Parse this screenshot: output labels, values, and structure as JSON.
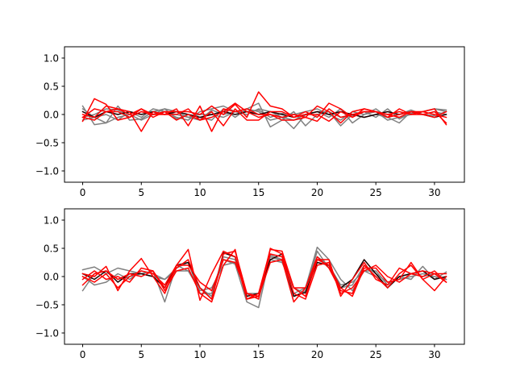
{
  "chart_data": [
    {
      "type": "line",
      "xlim": [
        -1.55,
        32.55
      ],
      "ylim": [
        -1.2,
        1.2
      ],
      "xticks": [
        0,
        5,
        10,
        15,
        20,
        25,
        30
      ],
      "xtick_labels": [
        "0",
        "5",
        "10",
        "15",
        "20",
        "25",
        "30"
      ],
      "yticks": [
        1.0,
        0.5,
        0.0,
        -0.5,
        -1.0
      ],
      "ytick_labels": [
        "1.0",
        "0.5",
        "0.0",
        "−0.5",
        "−1.0"
      ],
      "grid": false,
      "x": [
        0,
        1,
        2,
        3,
        4,
        5,
        6,
        7,
        8,
        9,
        10,
        11,
        12,
        13,
        14,
        15,
        16,
        17,
        18,
        19,
        20,
        21,
        22,
        23,
        24,
        25,
        26,
        27,
        28,
        29,
        30,
        31
      ],
      "series": [
        {
          "color": "#808080",
          "values": [
            0.15,
            -0.18,
            -0.15,
            0.15,
            -0.1,
            -0.08,
            0.05,
            0.1,
            -0.08,
            0.0,
            -0.05,
            -0.1,
            0.1,
            -0.05,
            0.1,
            0.2,
            -0.22,
            -0.1,
            0.05,
            -0.2,
            0.0,
            0.05,
            -0.05,
            -0.02,
            0.05,
            -0.05,
            0.1,
            -0.08,
            0.02,
            0.05,
            0.1,
            0.05
          ]
        },
        {
          "color": "#808080",
          "values": [
            -0.05,
            0.0,
            0.1,
            0.08,
            -0.05,
            0.05,
            0.0,
            0.1,
            0.05,
            -0.05,
            -0.1,
            0.08,
            0.0,
            0.05,
            0.05,
            0.08,
            -0.05,
            0.02,
            0.0,
            0.05,
            0.1,
            0.0,
            -0.1,
            0.05,
            0.0,
            0.1,
            -0.05,
            0.0,
            0.08,
            0.0,
            0.05,
            0.0
          ]
        },
        {
          "color": "#808080",
          "values": [
            0.1,
            -0.05,
            0.0,
            -0.1,
            0.05,
            -0.05,
            0.1,
            0.05,
            -0.05,
            -0.1,
            0.05,
            0.1,
            0.15,
            0.05,
            0.1,
            0.05,
            -0.1,
            -0.05,
            -0.25,
            0.0,
            0.05,
            -0.05,
            0.1,
            -0.15,
            0.0,
            0.05,
            -0.1,
            -0.05,
            0.0,
            0.05,
            0.1,
            0.08
          ]
        },
        {
          "color": "#808080",
          "values": [
            -0.1,
            -0.05,
            -0.15,
            -0.05,
            0.0,
            -0.1,
            0.0,
            0.05,
            0.0,
            -0.05,
            0.0,
            0.0,
            -0.05,
            0.05,
            0.0,
            0.1,
            0.05,
            -0.05,
            -0.1,
            0.0,
            0.05,
            0.05,
            -0.2,
            0.0,
            -0.05,
            0.0,
            -0.05,
            -0.15,
            0.05,
            0.0,
            -0.02,
            0.05
          ]
        },
        {
          "color": "#1a0000",
          "values": [
            0.05,
            -0.05,
            0.05,
            0.0,
            0.05,
            0.0,
            0.05,
            0.0,
            0.05,
            0.0,
            -0.05,
            0.0,
            0.05,
            0.0,
            0.05,
            0.0,
            0.05,
            0.0,
            -0.05,
            0.0,
            0.05,
            0.0,
            0.05,
            0.0,
            -0.05,
            0.0,
            0.05,
            0.0,
            0.05,
            0.0,
            -0.05,
            0.0
          ]
        },
        {
          "color": "#ff0000",
          "values": [
            -0.12,
            0.28,
            0.18,
            -0.1,
            -0.05,
            0.1,
            -0.05,
            0.05,
            0.05,
            0.05,
            0.0,
            0.15,
            0.0,
            0.18,
            -0.05,
            0.4,
            0.15,
            0.1,
            -0.05,
            0.05,
            -0.05,
            0.2,
            0.1,
            -0.05,
            0.05,
            0.05,
            0.0,
            0.05,
            0.0,
            0.0,
            0.05,
            -0.15
          ]
        },
        {
          "color": "#ff0000",
          "values": [
            -0.05,
            0.1,
            0.05,
            0.1,
            0.05,
            -0.3,
            0.05,
            0.0,
            0.0,
            0.1,
            -0.1,
            0.05,
            -0.2,
            0.1,
            -0.1,
            -0.1,
            0.05,
            0.05,
            -0.05,
            0.0,
            0.0,
            -0.12,
            0.05,
            -0.05,
            0.1,
            0.05,
            0.0,
            -0.05,
            0.05,
            0.0,
            -0.05,
            0.05
          ]
        },
        {
          "color": "#ff0000",
          "values": [
            0.0,
            -0.05,
            0.15,
            0.1,
            0.0,
            0.1,
            0.0,
            0.0,
            0.1,
            -0.2,
            0.15,
            -0.3,
            0.1,
            0.05,
            0.1,
            0.0,
            0.0,
            -0.05,
            0.0,
            -0.05,
            0.15,
            0.05,
            -0.15,
            0.05,
            0.1,
            0.05,
            -0.05,
            0.1,
            0.0,
            0.05,
            0.1,
            -0.18
          ]
        },
        {
          "color": "#ff0000",
          "values": [
            -0.05,
            -0.1,
            0.05,
            0.05,
            -0.05,
            0.05,
            0.0,
            0.05,
            -0.1,
            0.0,
            -0.1,
            -0.05,
            0.05,
            0.2,
            0.05,
            -0.05,
            0.0,
            -0.1,
            -0.1,
            -0.05,
            -0.12,
            0.1,
            -0.05,
            0.0,
            0.05,
            0.05,
            -0.05,
            0.0,
            0.05,
            0.05,
            0.0,
            -0.05
          ]
        }
      ]
    },
    {
      "type": "line",
      "xlim": [
        -1.55,
        32.55
      ],
      "ylim": [
        -1.2,
        1.2
      ],
      "xticks": [
        0,
        5,
        10,
        15,
        20,
        25,
        30
      ],
      "xtick_labels": [
        "0",
        "5",
        "10",
        "15",
        "20",
        "25",
        "30"
      ],
      "yticks": [
        1.0,
        0.5,
        0.0,
        -0.5,
        -1.0
      ],
      "ytick_labels": [
        "1.0",
        "0.5",
        "0.0",
        "−0.5",
        "−1.0"
      ],
      "grid": false,
      "x": [
        0,
        1,
        2,
        3,
        4,
        5,
        6,
        7,
        8,
        9,
        10,
        11,
        12,
        13,
        14,
        15,
        16,
        17,
        18,
        19,
        20,
        21,
        22,
        23,
        24,
        25,
        26,
        27,
        28,
        29,
        30,
        31
      ],
      "series": [
        {
          "color": "#808080",
          "values": [
            0.12,
            0.17,
            0.05,
            0.15,
            0.1,
            0.05,
            0.1,
            -0.45,
            0.2,
            0.1,
            -0.2,
            -0.35,
            0.3,
            0.22,
            -0.45,
            -0.55,
            0.38,
            0.3,
            -0.3,
            -0.2,
            0.52,
            0.3,
            -0.05,
            -0.25,
            0.1,
            0.0,
            -0.2,
            0.0,
            -0.05,
            0.18,
            -0.05,
            0.08
          ]
        },
        {
          "color": "#808080",
          "values": [
            -0.25,
            0.05,
            0.1,
            -0.05,
            0.0,
            0.05,
            0.0,
            -0.05,
            0.15,
            0.25,
            -0.3,
            -0.3,
            0.35,
            0.3,
            -0.3,
            -0.4,
            0.35,
            0.28,
            -0.35,
            -0.25,
            0.45,
            0.15,
            -0.2,
            -0.15,
            0.2,
            0.05,
            -0.1,
            -0.05,
            0.0,
            0.05,
            0.0,
            -0.05
          ]
        },
        {
          "color": "#808080",
          "values": [
            0.0,
            -0.15,
            -0.1,
            0.05,
            -0.05,
            0.1,
            0.05,
            -0.05,
            0.1,
            0.1,
            -0.25,
            -0.2,
            0.2,
            0.25,
            -0.3,
            -0.3,
            0.3,
            0.25,
            -0.2,
            -0.3,
            0.35,
            0.2,
            -0.15,
            -0.1,
            0.1,
            0.1,
            -0.15,
            0.0,
            0.05,
            0.0,
            0.05,
            -0.05
          ]
        },
        {
          "color": "#1a0000",
          "values": [
            0.05,
            -0.05,
            0.1,
            -0.1,
            0.05,
            0.05,
            0.0,
            -0.2,
            0.2,
            0.25,
            -0.2,
            -0.4,
            0.42,
            0.35,
            -0.35,
            -0.3,
            0.3,
            0.4,
            -0.35,
            -0.28,
            0.25,
            0.2,
            -0.2,
            -0.05,
            0.3,
            0.05,
            -0.2,
            0.0,
            0.05,
            0.1,
            -0.05,
            0.0
          ]
        },
        {
          "color": "#ff0000",
          "values": [
            0.05,
            0.0,
            0.18,
            -0.25,
            0.1,
            0.32,
            0.0,
            -0.3,
            0.2,
            0.48,
            -0.42,
            0.05,
            0.45,
            0.35,
            -0.4,
            -0.3,
            0.48,
            0.45,
            -0.2,
            -0.35,
            0.3,
            0.2,
            -0.2,
            -0.35,
            0.15,
            0.15,
            -0.1,
            -0.05,
            0.25,
            -0.05,
            -0.25,
            0.0
          ]
        },
        {
          "color": "#ff0000",
          "values": [
            -0.05,
            0.1,
            -0.05,
            0.0,
            -0.1,
            0.15,
            0.1,
            -0.2,
            0.15,
            0.3,
            -0.2,
            -0.4,
            0.4,
            0.45,
            -0.3,
            -0.35,
            0.25,
            0.3,
            -0.45,
            -0.2,
            0.3,
            0.3,
            -0.35,
            -0.05,
            0.25,
            -0.05,
            -0.15,
            0.15,
            0.05,
            0.1,
            0.05,
            0.05
          ]
        },
        {
          "color": "#ff0000",
          "values": [
            -0.15,
            0.05,
            0.1,
            -0.05,
            0.05,
            0.0,
            0.1,
            -0.25,
            0.1,
            0.15,
            -0.3,
            -0.45,
            0.2,
            0.48,
            -0.4,
            -0.35,
            0.4,
            0.35,
            -0.3,
            -0.4,
            0.2,
            0.25,
            -0.3,
            -0.2,
            0.1,
            0.2,
            0.0,
            -0.1,
            0.05,
            0.0,
            0.1,
            -0.1
          ]
        },
        {
          "color": "#ff0000",
          "values": [
            0.0,
            -0.1,
            0.05,
            -0.2,
            0.0,
            0.1,
            0.05,
            -0.15,
            0.2,
            0.2,
            -0.1,
            -0.25,
            0.3,
            0.25,
            -0.3,
            -0.4,
            0.5,
            0.4,
            -0.2,
            -0.2,
            0.35,
            0.15,
            -0.25,
            -0.3,
            0.2,
            0.0,
            -0.2,
            0.05,
            0.2,
            -0.05,
            0.05,
            -0.1
          ]
        }
      ]
    }
  ]
}
